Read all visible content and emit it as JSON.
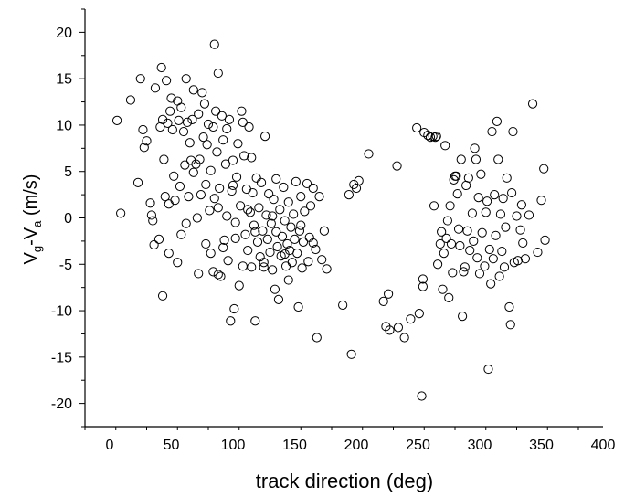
{
  "chart_data": {
    "type": "scatter",
    "title": "",
    "xlabel": "track direction (deg)",
    "ylabel": {
      "parts": [
        "V",
        "g",
        "-V",
        "a",
        " (m/s)"
      ]
    },
    "xlim": [
      -20,
      400
    ],
    "ylim": [
      -22.5,
      22.5
    ],
    "xticks": [
      0,
      50,
      100,
      150,
      200,
      250,
      300,
      350,
      400
    ],
    "yticks": [
      -20,
      -15,
      -10,
      -5,
      0,
      5,
      10,
      15,
      20
    ],
    "marker": "open-circle",
    "grid": false,
    "points": [
      [
        6,
        10.5
      ],
      [
        9,
        0.5
      ],
      [
        17,
        12.7
      ],
      [
        23,
        3.8
      ],
      [
        25,
        15
      ],
      [
        27,
        9.5
      ],
      [
        28,
        7.6
      ],
      [
        30,
        8.3
      ],
      [
        33,
        1.6
      ],
      [
        34,
        0.3
      ],
      [
        35,
        -0.3
      ],
      [
        36,
        -2.9
      ],
      [
        37,
        14
      ],
      [
        40,
        -2.3
      ],
      [
        41,
        9.8
      ],
      [
        42,
        16.2
      ],
      [
        43,
        10.6
      ],
      [
        43,
        -8.4
      ],
      [
        44,
        6.3
      ],
      [
        45,
        2.3
      ],
      [
        46,
        14.8
      ],
      [
        47,
        10.2
      ],
      [
        48,
        1.5
      ],
      [
        49,
        11.5
      ],
      [
        50,
        12.9
      ],
      [
        51,
        9.5
      ],
      [
        52,
        4.5
      ],
      [
        53,
        1.9
      ],
      [
        55,
        -4.8
      ],
      [
        55,
        12.6
      ],
      [
        56,
        10.5
      ],
      [
        57,
        3.4
      ],
      [
        58,
        11.9
      ],
      [
        60,
        9.3
      ],
      [
        61,
        5.7
      ],
      [
        62,
        -0.6
      ],
      [
        62,
        15
      ],
      [
        63,
        10.3
      ],
      [
        64,
        2.3
      ],
      [
        65,
        8.1
      ],
      [
        66,
        6.2
      ],
      [
        67,
        10.6
      ],
      [
        68,
        13.8
      ],
      [
        70,
        5.8
      ],
      [
        71,
        0
      ],
      [
        72,
        -6
      ],
      [
        72,
        11.2
      ],
      [
        73,
        6.3
      ],
      [
        74,
        2.5
      ],
      [
        75,
        13.5
      ],
      [
        76,
        8.7
      ],
      [
        77,
        12.3
      ],
      [
        78,
        3.6
      ],
      [
        79,
        7.9
      ],
      [
        80,
        10.1
      ],
      [
        81,
        0.8
      ],
      [
        82,
        -3.8
      ],
      [
        82,
        5.1
      ],
      [
        84,
        9.8
      ],
      [
        84,
        -5.8
      ],
      [
        85,
        18.7
      ],
      [
        85,
        2.1
      ],
      [
        86,
        11.5
      ],
      [
        87,
        7.1
      ],
      [
        88,
        -6.1
      ],
      [
        88,
        15.6
      ],
      [
        89,
        3.2
      ],
      [
        90,
        -6.3
      ],
      [
        91,
        11
      ],
      [
        92,
        8.4
      ],
      [
        93,
        -2.4
      ],
      [
        94,
        5.8
      ],
      [
        95,
        0.2
      ],
      [
        96,
        -4.6
      ],
      [
        97,
        10.6
      ],
      [
        98,
        -11.1
      ],
      [
        99,
        2.9
      ],
      [
        100,
        6.2
      ],
      [
        101,
        -9.8
      ],
      [
        102,
        -2.2
      ],
      [
        103,
        4.4
      ],
      [
        104,
        8
      ],
      [
        105,
        -7.3
      ],
      [
        106,
        1.3
      ],
      [
        107,
        11.5
      ],
      [
        108,
        -5.2
      ],
      [
        109,
        6.7
      ],
      [
        110,
        -1.8
      ],
      [
        111,
        3.1
      ],
      [
        112,
        -3.5
      ],
      [
        113,
        9.8
      ],
      [
        114,
        0.6
      ],
      [
        115,
        -5.3
      ],
      [
        116,
        2.7
      ],
      [
        117,
        -0.8
      ],
      [
        118,
        -11.1
      ],
      [
        119,
        4.3
      ],
      [
        120,
        -2.6
      ],
      [
        121,
        1.1
      ],
      [
        122,
        -4.2
      ],
      [
        123,
        3.8
      ],
      [
        124,
        -1.4
      ],
      [
        125,
        -5.3
      ],
      [
        126,
        8.8
      ],
      [
        127,
        0.3
      ],
      [
        128,
        -2.3
      ],
      [
        129,
        2.6
      ],
      [
        130,
        -3.7
      ],
      [
        131,
        -0.6
      ],
      [
        132,
        -5.6
      ],
      [
        133,
        2
      ],
      [
        134,
        -7.7
      ],
      [
        135,
        -1.5
      ],
      [
        136,
        -3.1
      ],
      [
        137,
        -8.8
      ],
      [
        138,
        0.9
      ],
      [
        139,
        -4.1
      ],
      [
        140,
        -2
      ],
      [
        141,
        3.3
      ],
      [
        142,
        -0.3
      ],
      [
        143,
        -5.2
      ],
      [
        144,
        -2.8
      ],
      [
        145,
        1.7
      ],
      [
        146,
        -3.5
      ],
      [
        147,
        -1
      ],
      [
        148,
        -4.8
      ],
      [
        149,
        0.4
      ],
      [
        150,
        -2.3
      ],
      [
        151,
        3.9
      ],
      [
        152,
        -3.8
      ],
      [
        153,
        -9.6
      ],
      [
        154,
        -1.4
      ],
      [
        155,
        2.3
      ],
      [
        156,
        -5.4
      ],
      [
        157,
        -2.6
      ],
      [
        158,
        0.7
      ],
      [
        160,
        3.7
      ],
      [
        161,
        -4.7
      ],
      [
        162,
        -2.1
      ],
      [
        163,
        1.3
      ],
      [
        165,
        3.2
      ],
      [
        167,
        -3.4
      ],
      [
        168,
        -12.9
      ],
      [
        170,
        2.3
      ],
      [
        172,
        -4.5
      ],
      [
        174,
        -1.4
      ],
      [
        176,
        -5.5
      ],
      [
        189,
        -9.4
      ],
      [
        194,
        2.5
      ],
      [
        196,
        -14.7
      ],
      [
        198,
        3.6
      ],
      [
        200,
        3.2
      ],
      [
        202,
        4
      ],
      [
        210,
        6.9
      ],
      [
        222,
        -9
      ],
      [
        224,
        -11.7
      ],
      [
        226,
        -8.2
      ],
      [
        227,
        -12.1
      ],
      [
        233,
        5.6
      ],
      [
        234,
        -11.8
      ],
      [
        239,
        -12.9
      ],
      [
        244,
        -10.9
      ],
      [
        249,
        9.7
      ],
      [
        251,
        -10.3
      ],
      [
        253,
        -19.2
      ],
      [
        254,
        -6.6
      ],
      [
        254,
        -7.4
      ],
      [
        255,
        9.2
      ],
      [
        258,
        8.9
      ],
      [
        260,
        8.7
      ],
      [
        262,
        8.8
      ],
      [
        263,
        1.3
      ],
      [
        264,
        8.7
      ],
      [
        265,
        8.8
      ],
      [
        266,
        -5
      ],
      [
        268,
        -2.8
      ],
      [
        269,
        -1.5
      ],
      [
        270,
        -7.7
      ],
      [
        271,
        -3.8
      ],
      [
        272,
        7.8
      ],
      [
        273,
        -2.2
      ],
      [
        274,
        -0.3
      ],
      [
        275,
        -8.6
      ],
      [
        276,
        1.3
      ],
      [
        277,
        -2.8
      ],
      [
        278,
        -5.9
      ],
      [
        279,
        4.1
      ],
      [
        280,
        4.5
      ],
      [
        281,
        4.5
      ],
      [
        282,
        2.6
      ],
      [
        283,
        -1.2
      ],
      [
        284,
        -3
      ],
      [
        285,
        6.3
      ],
      [
        286,
        -10.6
      ],
      [
        287,
        -5.8
      ],
      [
        288,
        -5.3
      ],
      [
        289,
        3.5
      ],
      [
        290,
        -1.4
      ],
      [
        291,
        4.3
      ],
      [
        292,
        -3.5
      ],
      [
        294,
        0.5
      ],
      [
        295,
        -2.5
      ],
      [
        296,
        7.5
      ],
      [
        297,
        6.3
      ],
      [
        298,
        -4.3
      ],
      [
        299,
        2.2
      ],
      [
        300,
        -6
      ],
      [
        301,
        4.7
      ],
      [
        302,
        -1.6
      ],
      [
        304,
        -5.2
      ],
      [
        305,
        0.6
      ],
      [
        306,
        1.8
      ],
      [
        307,
        -16.3
      ],
      [
        308,
        -3.4
      ],
      [
        309,
        -7.1
      ],
      [
        310,
        9.3
      ],
      [
        311,
        -4.4
      ],
      [
        312,
        2.5
      ],
      [
        313,
        -1.9
      ],
      [
        314,
        10.4
      ],
      [
        315,
        6.3
      ],
      [
        316,
        -6.3
      ],
      [
        317,
        0.4
      ],
      [
        318,
        -3.6
      ],
      [
        319,
        2.1
      ],
      [
        320,
        -5.3
      ],
      [
        321,
        -1
      ],
      [
        322,
        4.3
      ],
      [
        324,
        -9.6
      ],
      [
        325,
        -11.5
      ],
      [
        326,
        2.7
      ],
      [
        327,
        9.3
      ],
      [
        328,
        -4.8
      ],
      [
        330,
        0.2
      ],
      [
        331,
        -4.6
      ],
      [
        333,
        -1.3
      ],
      [
        334,
        1.4
      ],
      [
        335,
        -2.7
      ],
      [
        337,
        -4.4
      ],
      [
        340,
        0.3
      ],
      [
        343,
        12.3
      ],
      [
        347,
        -3.7
      ],
      [
        350,
        1.9
      ],
      [
        352,
        5.3
      ],
      [
        353,
        -2.4
      ],
      [
        100,
        3.5
      ],
      [
        95,
        9.6
      ],
      [
        115,
        6.5
      ],
      [
        125,
        -4.8
      ],
      [
        135,
        4.2
      ],
      [
        145,
        -6.7
      ],
      [
        108,
        10.3
      ],
      [
        118,
        -1.5
      ],
      [
        92,
        -3.2
      ],
      [
        78,
        -2.8
      ],
      [
        68,
        4.9
      ],
      [
        58,
        -1.8
      ],
      [
        48,
        -3.8
      ],
      [
        88,
        1.1
      ],
      [
        132,
        0.2
      ],
      [
        142,
        -3.9
      ],
      [
        155,
        -0.8
      ],
      [
        165,
        -2.7
      ],
      [
        102,
        -0.5
      ],
      [
        112,
        0.9
      ]
    ]
  }
}
